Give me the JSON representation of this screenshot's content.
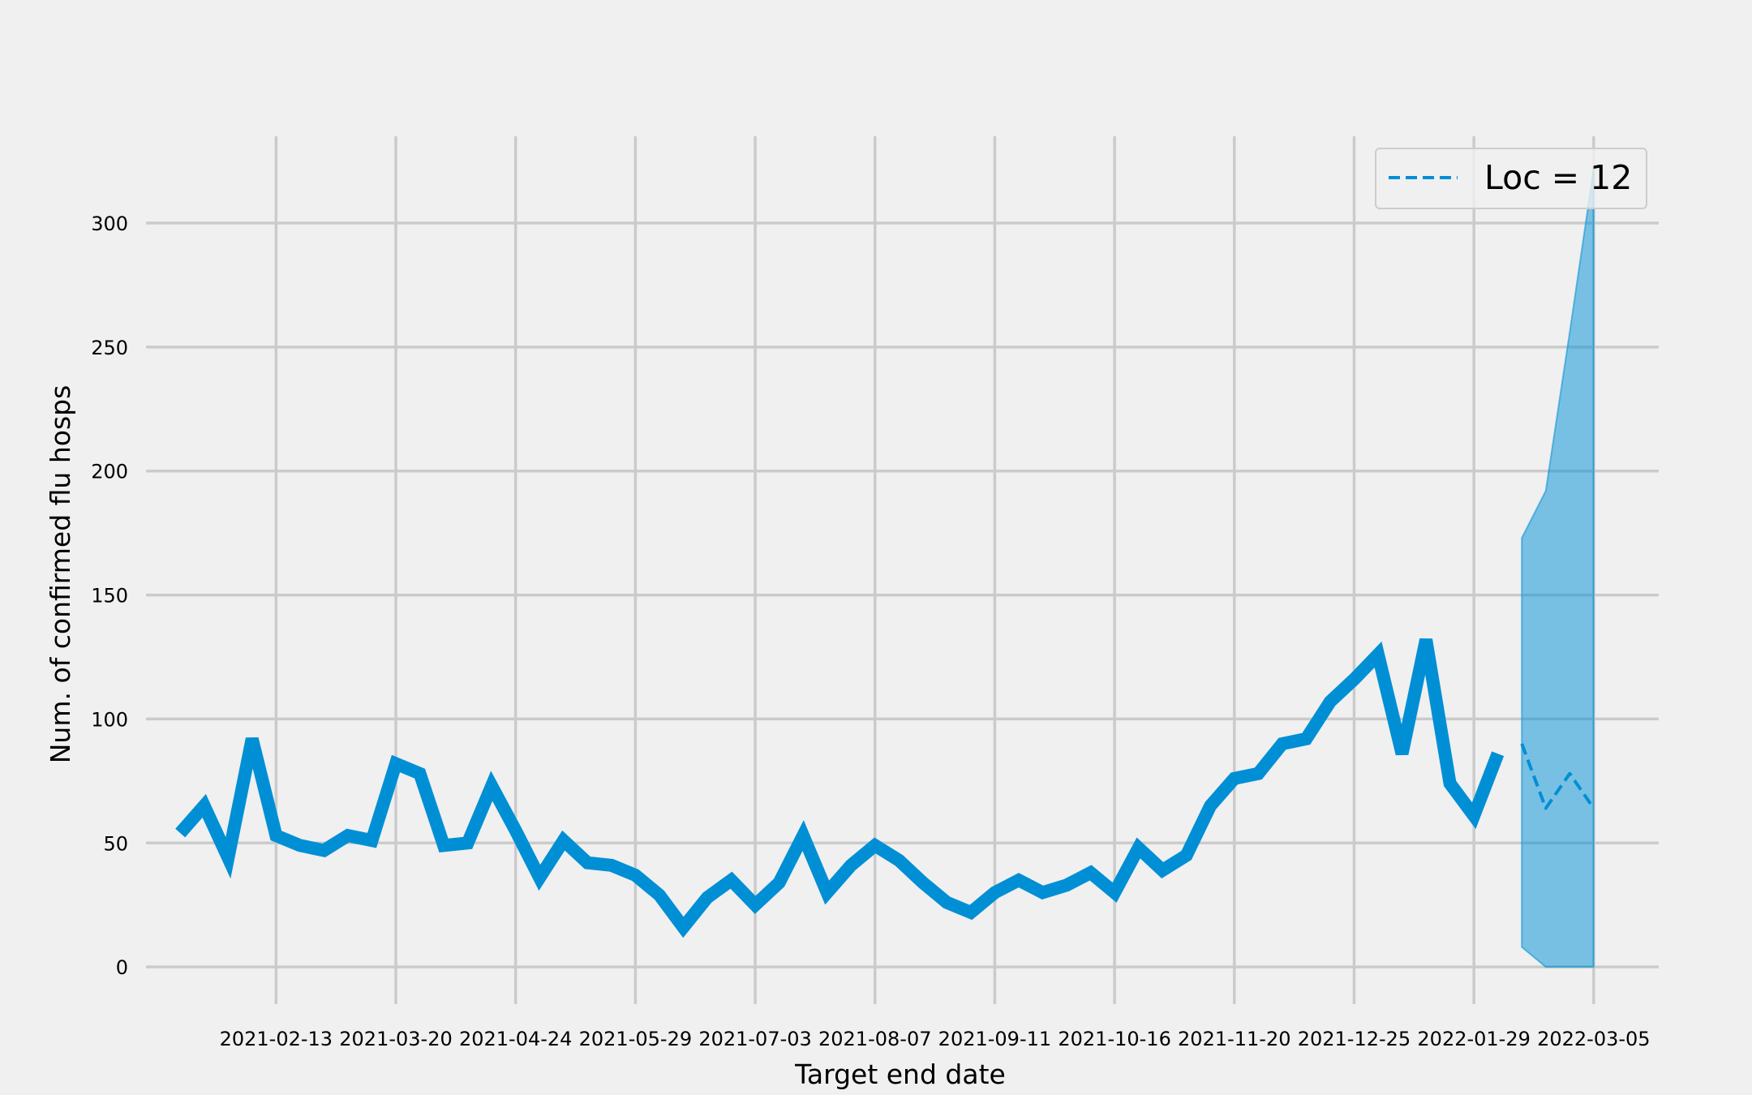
{
  "chart_data": {
    "type": "line",
    "xlabel": "Target end date",
    "ylabel": "Num. of confirmed flu hosps",
    "x_ticks": [
      "2021-02-13",
      "2021-03-20",
      "2021-04-24",
      "2021-05-29",
      "2021-07-03",
      "2021-08-07",
      "2021-09-11",
      "2021-10-16",
      "2021-11-20",
      "2021-12-25",
      "2022-01-29",
      "2022-03-05"
    ],
    "y_ticks": [
      0,
      50,
      100,
      150,
      200,
      250,
      300
    ],
    "xlim": [
      "2021-01-06",
      "2022-03-24"
    ],
    "ylim": [
      -15,
      335
    ],
    "grid": true,
    "legend": {
      "position": "top-right",
      "entries": [
        {
          "label": "Loc = 12",
          "style": "dashed"
        }
      ]
    },
    "colors": {
      "series": "#008fd5",
      "band": "#008fd5",
      "background": "#f0f0f0",
      "grid": "#cbcbcb"
    },
    "series": [
      {
        "style": "solid",
        "x": [
          "2021-01-16",
          "2021-01-23",
          "2021-01-30",
          "2021-02-06",
          "2021-02-13",
          "2021-02-20",
          "2021-02-27",
          "2021-03-06",
          "2021-03-13",
          "2021-03-20",
          "2021-03-27",
          "2021-04-03",
          "2021-04-10",
          "2021-04-17",
          "2021-04-24",
          "2021-05-01",
          "2021-05-08",
          "2021-05-15",
          "2021-05-22",
          "2021-05-29",
          "2021-06-05",
          "2021-06-12",
          "2021-06-19",
          "2021-06-26",
          "2021-07-03",
          "2021-07-10",
          "2021-07-17",
          "2021-07-24",
          "2021-07-31",
          "2021-08-07",
          "2021-08-14",
          "2021-08-21",
          "2021-08-28",
          "2021-09-04",
          "2021-09-11",
          "2021-09-18",
          "2021-09-25",
          "2021-10-02",
          "2021-10-09",
          "2021-10-16",
          "2021-10-23",
          "2021-10-30",
          "2021-11-06",
          "2021-11-13",
          "2021-11-20",
          "2021-11-27",
          "2021-12-04",
          "2021-12-11",
          "2021-12-18",
          "2021-12-25",
          "2022-01-01",
          "2022-01-08",
          "2022-01-15",
          "2022-01-22",
          "2022-01-29",
          "2022-02-05"
        ],
        "values": [
          54,
          65,
          44,
          92,
          53,
          49,
          47,
          53,
          51,
          82,
          78,
          49,
          50,
          73,
          55,
          36,
          51,
          42,
          41,
          37,
          29,
          16,
          28,
          35,
          25,
          34,
          53,
          30,
          41,
          49,
          43,
          34,
          26,
          22,
          30,
          35,
          30,
          33,
          38,
          30,
          48,
          39,
          45,
          65,
          76,
          78,
          90,
          92,
          107,
          116,
          126,
          86,
          132,
          74,
          61,
          86
        ]
      },
      {
        "name": "Loc = 12",
        "style": "dashed",
        "x": [
          "2022-02-12",
          "2022-02-19",
          "2022-02-26",
          "2022-03-05"
        ],
        "values": [
          90,
          64,
          78,
          64
        ]
      }
    ],
    "interval": {
      "x": [
        "2022-02-12",
        "2022-02-19",
        "2022-02-26",
        "2022-03-05"
      ],
      "lower": [
        8,
        0,
        0,
        0
      ],
      "upper": [
        173,
        192,
        256,
        322
      ]
    }
  }
}
